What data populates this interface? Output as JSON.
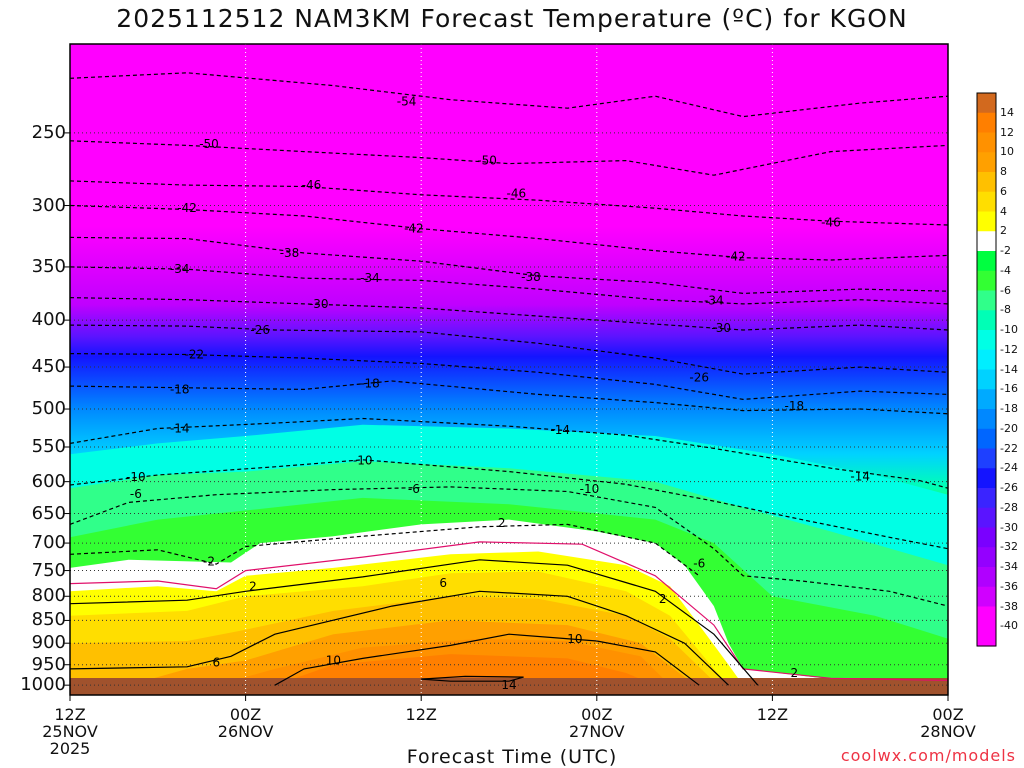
{
  "title": "2025112512 NAM3KM Forecast Temperature (ºC) for KGON",
  "xlabel": "Forecast Time (UTC)",
  "credit": "coolwx.com/models",
  "chart_data": {
    "type": "time-height contour",
    "station": "KGON",
    "model": "NAM3KM",
    "run": "2025112512",
    "units": "ºC",
    "y_axis": {
      "quantity": "pressure (hPa)",
      "ticks": [
        250,
        300,
        350,
        400,
        450,
        500,
        550,
        600,
        650,
        700,
        750,
        800,
        850,
        900,
        950,
        1000
      ],
      "range": [
        1025,
        200
      ],
      "scale": "log",
      "direction": "decreasing upward"
    },
    "x_axis": {
      "ticks": [
        {
          "lines": [
            "12Z",
            "25NOV",
            "2025"
          ]
        },
        {
          "lines": [
            "00Z",
            "26NOV"
          ]
        },
        {
          "lines": [
            "12Z"
          ]
        },
        {
          "lines": [
            "00Z",
            "27NOV"
          ]
        },
        {
          "lines": [
            "12Z"
          ]
        },
        {
          "lines": [
            "00Z",
            "28NOV"
          ]
        }
      ],
      "range_hours": [
        0,
        60
      ]
    },
    "colorbar": {
      "levels": [
        14,
        12,
        10,
        8,
        6,
        4,
        2,
        -2,
        -4,
        -6,
        -8,
        -10,
        -12,
        -14,
        -16,
        -18,
        -20,
        -22,
        -24,
        -26,
        -28,
        -30,
        -32,
        -34,
        -36,
        -38,
        -40
      ],
      "colors": [
        "#d2691e",
        "#ff7f00",
        "#ff9100",
        "#ffa000",
        "#ffc000",
        "#ffde00",
        "#ffff00",
        "#ffffff",
        "#00ff40",
        "#33ff33",
        "#30ff8a",
        "#00ffb6",
        "#00ffe5",
        "#00eeff",
        "#00d2ff",
        "#00aaff",
        "#0088ff",
        "#0066ff",
        "#1e40ff",
        "#1414ff",
        "#3a24ff",
        "#5a14ff",
        "#7a00ff",
        "#9400ff",
        "#b000ff",
        "#d000ff",
        "#ff00ff"
      ]
    },
    "contour_labels": [
      {
        "value": "-54",
        "hour": 23.0,
        "p": 231
      },
      {
        "value": "-50",
        "hour": 9.5,
        "p": 257
      },
      {
        "value": "-50",
        "hour": 28.5,
        "p": 268
      },
      {
        "value": "-46",
        "hour": 16.5,
        "p": 285
      },
      {
        "value": "-46",
        "hour": 30.5,
        "p": 291
      },
      {
        "value": "-46",
        "hour": 52.0,
        "p": 313
      },
      {
        "value": "-42",
        "hour": 8.0,
        "p": 302
      },
      {
        "value": "-42",
        "hour": 23.5,
        "p": 318
      },
      {
        "value": "-42",
        "hour": 45.5,
        "p": 341
      },
      {
        "value": "-38",
        "hour": 15.0,
        "p": 338
      },
      {
        "value": "-38",
        "hour": 31.5,
        "p": 359
      },
      {
        "value": "-34",
        "hour": 7.5,
        "p": 352
      },
      {
        "value": "-34",
        "hour": 20.5,
        "p": 360
      },
      {
        "value": "-34",
        "hour": 44.0,
        "p": 381
      },
      {
        "value": "-30",
        "hour": 17.0,
        "p": 384
      },
      {
        "value": "-30",
        "hour": 44.5,
        "p": 408
      },
      {
        "value": "-26",
        "hour": 13.0,
        "p": 410
      },
      {
        "value": "-26",
        "hour": 43.0,
        "p": 462
      },
      {
        "value": "-22",
        "hour": 8.5,
        "p": 436
      },
      {
        "value": "-18",
        "hour": 7.5,
        "p": 476
      },
      {
        "value": "-18",
        "hour": 20.5,
        "p": 469
      },
      {
        "value": "-18",
        "hour": 49.5,
        "p": 496
      },
      {
        "value": "-14",
        "hour": 7.5,
        "p": 525
      },
      {
        "value": "-14",
        "hour": 33.5,
        "p": 527
      },
      {
        "value": "-14",
        "hour": 54.0,
        "p": 592
      },
      {
        "value": "-10",
        "hour": 4.5,
        "p": 593
      },
      {
        "value": "-10",
        "hour": 20.0,
        "p": 569
      },
      {
        "value": "-10",
        "hour": 35.5,
        "p": 611
      },
      {
        "value": "-6",
        "hour": 4.5,
        "p": 619
      },
      {
        "value": "-6",
        "hour": 23.5,
        "p": 611
      },
      {
        "value": "-6",
        "hour": 43.0,
        "p": 737
      },
      {
        "value": "-2",
        "hour": 9.5,
        "p": 733
      },
      {
        "value": "2",
        "hour": 29.5,
        "p": 666
      },
      {
        "value": "2",
        "hour": 12.5,
        "p": 781
      },
      {
        "value": "2",
        "hour": 40.5,
        "p": 806
      },
      {
        "value": "2",
        "hour": 49.5,
        "p": 970
      },
      {
        "value": "6",
        "hour": 25.5,
        "p": 774
      },
      {
        "value": "6",
        "hour": 10.0,
        "p": 945
      },
      {
        "value": "10",
        "hour": 18.0,
        "p": 940
      },
      {
        "value": "10",
        "hour": 34.5,
        "p": 891
      },
      {
        "value": "14",
        "hour": 30.0,
        "p": 1000
      }
    ]
  }
}
